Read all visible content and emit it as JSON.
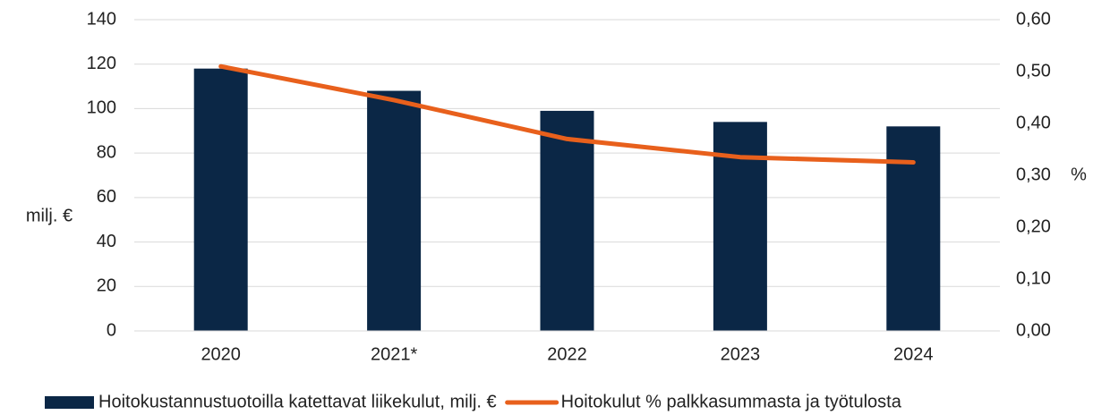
{
  "chart_data": {
    "type": "bar",
    "categories": [
      "2020",
      "2021*",
      "2022",
      "2023",
      "2024"
    ],
    "series": [
      {
        "name": "Hoitokustannustuotoilla katettavat liikekulut, milj. €",
        "color": "#0b2746",
        "type": "bar",
        "values": [
          118,
          108,
          99,
          94,
          92
        ]
      },
      {
        "name": "Hoitokulut % palkkasummasta ja työtulosta",
        "color": "#e8601c",
        "type": "line",
        "axis": "y2",
        "values": [
          0.51,
          0.445,
          0.37,
          0.335,
          0.325
        ]
      }
    ],
    "y_label": "milj. €",
    "y2_label": "%",
    "ylim": [
      0,
      140
    ],
    "yticks": [
      0,
      20,
      40,
      60,
      80,
      100,
      120,
      140
    ],
    "y2lim": [
      0,
      0.6
    ],
    "y2ticks": [
      {
        "value": 0,
        "label": "0,00"
      },
      {
        "value": 0.1,
        "label": "0,10"
      },
      {
        "value": 0.2,
        "label": "0,20"
      },
      {
        "value": 0.3,
        "label": "0,30"
      },
      {
        "value": 0.4,
        "label": "0,40"
      },
      {
        "value": 0.5,
        "label": "0,50"
      },
      {
        "value": 0.6,
        "label": "0,60"
      }
    ],
    "grid": true,
    "legend": "bottom"
  }
}
